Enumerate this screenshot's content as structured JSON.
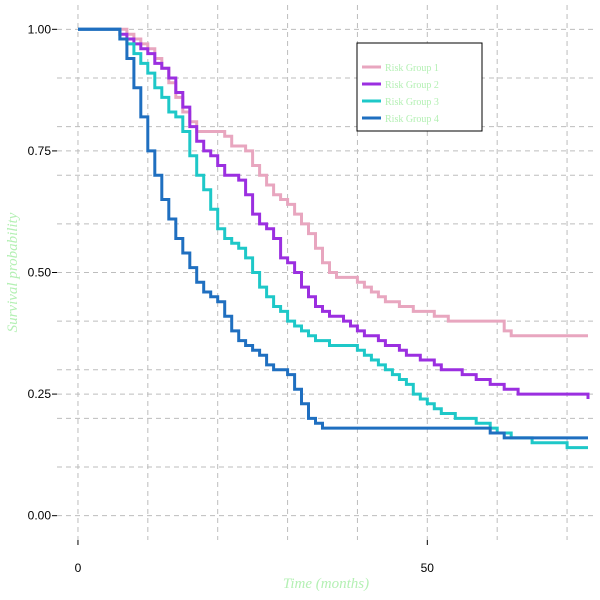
{
  "chart_data": {
    "type": "line",
    "title": "",
    "xlabel": "Time (months)",
    "ylabel": "Survival probability",
    "xlim": [
      -3,
      74
    ],
    "ylim": [
      -0.05,
      1.05
    ],
    "x_ticks": [
      0,
      50
    ],
    "x_tick_labels": [
      "0",
      "50"
    ],
    "y_ticks": [
      0,
      0.25,
      0.5,
      0.75,
      1.0
    ],
    "y_tick_labels": [
      "0.00",
      "0.25",
      "0.50",
      "0.75",
      "1.00"
    ],
    "x_grid": [
      0,
      10,
      20,
      30,
      40,
      50,
      60,
      70
    ],
    "y_grid": [
      0,
      0.1,
      0.2,
      0.25,
      0.3,
      0.4,
      0.5,
      0.6,
      0.7,
      0.75,
      0.8,
      0.9,
      1.0
    ],
    "grid": true,
    "legend_position": "top-right",
    "series": [
      {
        "name": "Risk Group 1",
        "color": "#e8a6bf",
        "x": [
          0,
          6,
          7,
          8,
          9,
          10,
          11,
          12,
          13,
          14,
          15,
          16,
          17,
          18,
          19,
          20,
          21,
          22,
          23,
          24,
          25,
          26,
          27,
          28,
          29,
          30,
          31,
          32,
          33,
          34,
          35,
          36,
          37,
          38,
          39,
          40,
          41,
          42,
          43,
          44,
          45,
          46,
          47,
          48,
          49,
          50,
          51,
          52,
          53,
          54,
          55,
          56,
          57,
          58,
          59,
          60,
          61,
          62,
          63,
          64,
          65,
          66,
          67,
          68,
          69,
          70,
          71,
          72,
          73
        ],
        "y": [
          1.0,
          1.0,
          0.99,
          0.98,
          0.97,
          0.96,
          0.94,
          0.92,
          0.89,
          0.86,
          0.83,
          0.81,
          0.79,
          0.79,
          0.79,
          0.79,
          0.78,
          0.76,
          0.76,
          0.75,
          0.72,
          0.7,
          0.68,
          0.66,
          0.65,
          0.64,
          0.62,
          0.6,
          0.58,
          0.55,
          0.52,
          0.5,
          0.49,
          0.49,
          0.49,
          0.48,
          0.47,
          0.46,
          0.45,
          0.44,
          0.44,
          0.43,
          0.43,
          0.42,
          0.42,
          0.42,
          0.41,
          0.41,
          0.4,
          0.4,
          0.4,
          0.4,
          0.4,
          0.4,
          0.4,
          0.4,
          0.38,
          0.37,
          0.37,
          0.37,
          0.37,
          0.37,
          0.37,
          0.37,
          0.37,
          0.37,
          0.37,
          0.37,
          0.37
        ]
      },
      {
        "name": "Risk Group 2",
        "color": "#9b2fe0",
        "x": [
          0,
          5,
          6,
          7,
          8,
          9,
          10,
          11,
          12,
          13,
          14,
          15,
          16,
          17,
          18,
          19,
          20,
          21,
          22,
          23,
          24,
          25,
          26,
          27,
          28,
          29,
          30,
          31,
          32,
          33,
          34,
          35,
          36,
          37,
          38,
          39,
          40,
          41,
          42,
          43,
          44,
          45,
          46,
          47,
          48,
          49,
          50,
          51,
          52,
          53,
          54,
          55,
          56,
          57,
          58,
          59,
          60,
          61,
          62,
          63,
          64,
          65,
          66,
          67,
          68,
          69,
          70,
          71,
          72,
          73
        ],
        "y": [
          1.0,
          1.0,
          0.99,
          0.98,
          0.97,
          0.96,
          0.95,
          0.93,
          0.92,
          0.9,
          0.87,
          0.84,
          0.8,
          0.77,
          0.75,
          0.74,
          0.72,
          0.7,
          0.7,
          0.69,
          0.66,
          0.62,
          0.6,
          0.59,
          0.57,
          0.53,
          0.52,
          0.5,
          0.47,
          0.45,
          0.43,
          0.42,
          0.41,
          0.41,
          0.4,
          0.39,
          0.38,
          0.37,
          0.37,
          0.36,
          0.35,
          0.35,
          0.34,
          0.33,
          0.33,
          0.32,
          0.32,
          0.31,
          0.3,
          0.3,
          0.3,
          0.29,
          0.29,
          0.28,
          0.28,
          0.27,
          0.27,
          0.26,
          0.26,
          0.25,
          0.25,
          0.25,
          0.25,
          0.25,
          0.25,
          0.25,
          0.25,
          0.25,
          0.25,
          0.24
        ]
      },
      {
        "name": "Risk Group 3",
        "color": "#1ec8c8",
        "x": [
          0,
          5,
          6,
          7,
          8,
          9,
          10,
          11,
          12,
          13,
          14,
          15,
          16,
          17,
          18,
          19,
          20,
          21,
          22,
          23,
          24,
          25,
          26,
          27,
          28,
          29,
          30,
          31,
          32,
          33,
          34,
          35,
          36,
          37,
          38,
          39,
          40,
          41,
          42,
          43,
          44,
          45,
          46,
          47,
          48,
          49,
          50,
          51,
          52,
          53,
          54,
          55,
          56,
          57,
          58,
          59,
          60,
          61,
          62,
          63,
          64,
          65,
          66,
          67,
          68,
          69,
          70,
          71,
          72,
          73
        ],
        "y": [
          1.0,
          1.0,
          0.98,
          0.97,
          0.95,
          0.93,
          0.91,
          0.88,
          0.86,
          0.83,
          0.82,
          0.79,
          0.74,
          0.7,
          0.67,
          0.63,
          0.59,
          0.57,
          0.56,
          0.55,
          0.53,
          0.5,
          0.47,
          0.45,
          0.43,
          0.42,
          0.4,
          0.39,
          0.38,
          0.37,
          0.36,
          0.36,
          0.35,
          0.35,
          0.35,
          0.35,
          0.34,
          0.33,
          0.32,
          0.31,
          0.3,
          0.29,
          0.28,
          0.27,
          0.25,
          0.24,
          0.23,
          0.22,
          0.21,
          0.21,
          0.2,
          0.2,
          0.2,
          0.19,
          0.19,
          0.18,
          0.17,
          0.17,
          0.16,
          0.16,
          0.16,
          0.15,
          0.15,
          0.15,
          0.15,
          0.15,
          0.14,
          0.14,
          0.14,
          0.14
        ]
      },
      {
        "name": "Risk Group 4",
        "color": "#1f6fc0",
        "x": [
          0,
          6,
          7,
          8,
          9,
          10,
          11,
          12,
          13,
          14,
          15,
          16,
          17,
          18,
          19,
          20,
          21,
          22,
          23,
          24,
          25,
          26,
          27,
          28,
          29,
          30,
          31,
          32,
          33,
          34,
          35,
          36,
          37,
          38,
          39,
          40,
          41,
          42,
          43,
          44,
          45,
          46,
          47,
          48,
          49,
          50,
          51,
          52,
          53,
          54,
          55,
          56,
          57,
          58,
          59,
          60,
          61,
          62,
          63,
          64,
          65,
          66,
          67,
          68,
          69,
          70,
          71,
          72,
          73
        ],
        "y": [
          1.0,
          0.98,
          0.94,
          0.88,
          0.82,
          0.75,
          0.7,
          0.65,
          0.61,
          0.57,
          0.54,
          0.51,
          0.48,
          0.46,
          0.45,
          0.44,
          0.41,
          0.38,
          0.36,
          0.35,
          0.34,
          0.33,
          0.31,
          0.3,
          0.3,
          0.29,
          0.26,
          0.23,
          0.2,
          0.19,
          0.18,
          0.18,
          0.18,
          0.18,
          0.18,
          0.18,
          0.18,
          0.18,
          0.18,
          0.18,
          0.18,
          0.18,
          0.18,
          0.18,
          0.18,
          0.18,
          0.18,
          0.18,
          0.18,
          0.18,
          0.18,
          0.18,
          0.18,
          0.18,
          0.17,
          0.17,
          0.16,
          0.16,
          0.16,
          0.16,
          0.16,
          0.16,
          0.16,
          0.16,
          0.16,
          0.16,
          0.16,
          0.16,
          0.16
        ]
      }
    ]
  }
}
